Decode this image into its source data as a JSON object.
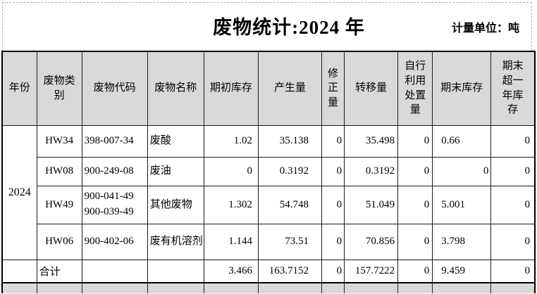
{
  "title": "废物统计:2024 年",
  "unit_label": "计量单位：吨",
  "table": {
    "headers": [
      "年份",
      "废物类别",
      "废物代码",
      "废物名称",
      "期初库存",
      "产生量",
      "修正量",
      "转移量",
      "自行利用处置量",
      "期末库存",
      "期末超一年库存"
    ],
    "year": "2024",
    "rows": [
      {
        "category": "HW34",
        "code": "398-007-34",
        "name": "废酸",
        "opening": "1.02",
        "generated": "35.138",
        "correction": "0",
        "transferred": "35.498",
        "self_disposed": "0",
        "closing": "0.66",
        "over_one_year": "0"
      },
      {
        "category": "HW08",
        "code": "900-249-08",
        "name": "废油",
        "opening": "0",
        "generated": "0.3192",
        "correction": "0",
        "transferred": "0.3192",
        "self_disposed": "0",
        "closing": "0",
        "over_one_year": "0"
      },
      {
        "category": "HW49",
        "code": "900-041-49\n900-039-49",
        "name": "其他废物",
        "opening": "1.302",
        "generated": "54.748",
        "correction": "0",
        "transferred": "51.049",
        "self_disposed": "0",
        "closing": "5.001",
        "over_one_year": "0"
      },
      {
        "category": "HW06",
        "code": "900-402-06",
        "name": "废有机溶剂",
        "opening": "1.144",
        "generated": "73.51",
        "correction": "0",
        "transferred": "70.856",
        "self_disposed": "0",
        "closing": "3.798",
        "over_one_year": "0"
      }
    ],
    "total": {
      "label": "合计",
      "opening": "3.466",
      "generated": "163.7152",
      "correction": "0",
      "transferred": "157.7222",
      "self_disposed": "0",
      "closing": "9.459",
      "over_one_year": "0"
    }
  },
  "colors": {
    "header_bg": "#d9d9d9",
    "grid_line": "#1c1c1c",
    "page_break_dash": "#b0b0b0"
  }
}
